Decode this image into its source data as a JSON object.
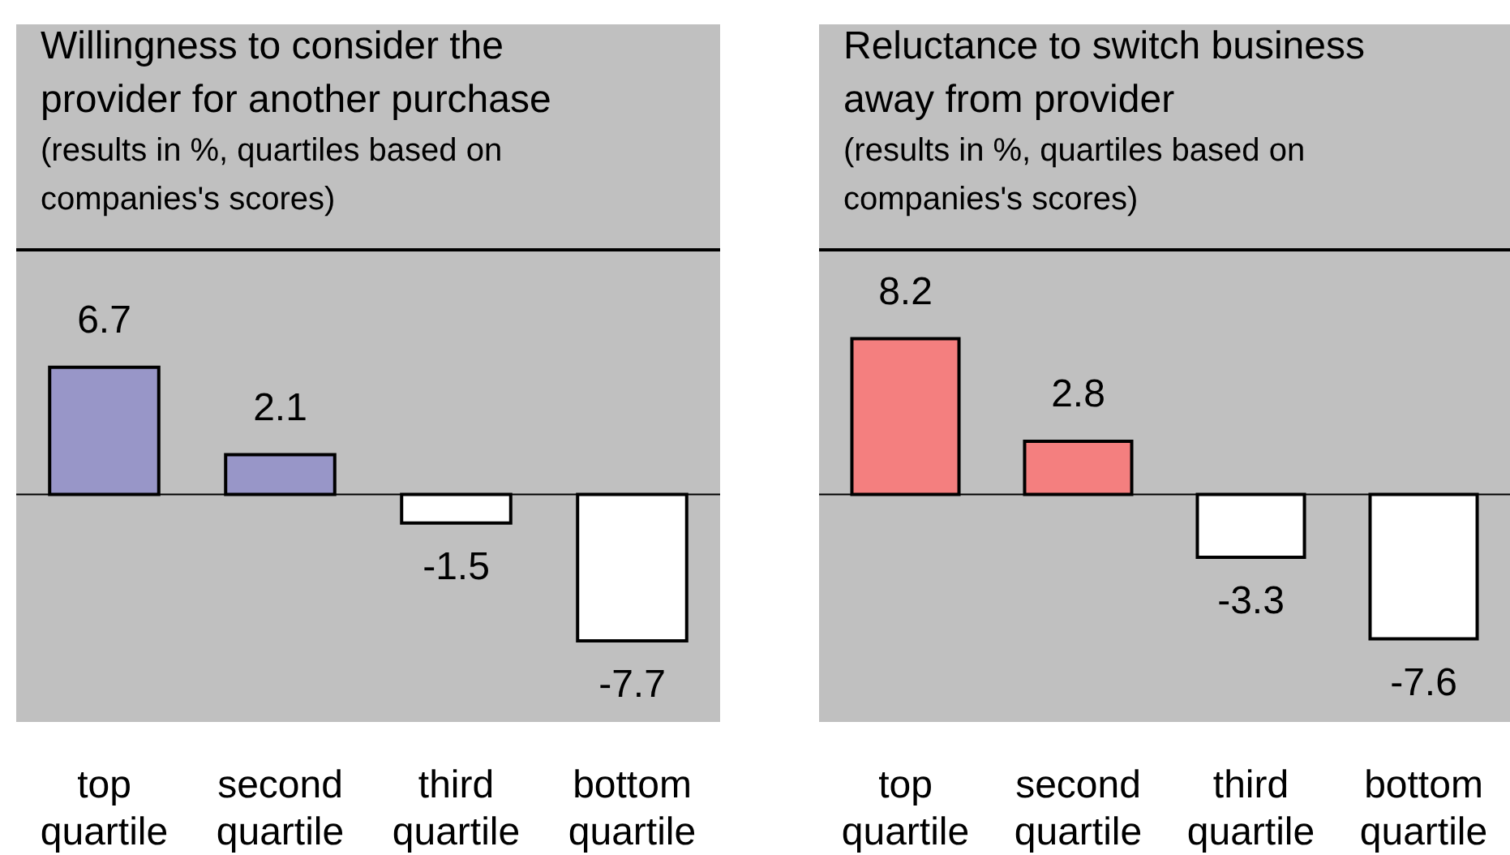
{
  "chart_data": [
    {
      "type": "bar",
      "title": "Willingness to consider the provider for another purchase",
      "subtitle": "(results in %, quartiles based on companies's scores)",
      "categories": [
        "top quartile",
        "second quartile",
        "third quartile",
        "bottom quartile"
      ],
      "values": [
        6.7,
        2.1,
        -1.5,
        -7.7
      ],
      "colors": [
        "#9896c8",
        "#9896c8",
        "#ffffff",
        "#ffffff"
      ],
      "ref_lines": [
        {
          "axis": "y",
          "value": 0
        }
      ],
      "data_labels": true,
      "tick_labels": "x"
    },
    {
      "type": "bar",
      "title": "Reluctance to switch business away from provider",
      "subtitle": "(results in %, quartiles based on companies's scores)",
      "categories": [
        "top quartile",
        "second quartile",
        "third quartile",
        "bottom quartile"
      ],
      "values": [
        8.2,
        2.8,
        -3.3,
        -7.6
      ],
      "colors": [
        "#f47f7f",
        "#f47f7f",
        "#ffffff",
        "#ffffff"
      ],
      "ref_lines": [
        {
          "axis": "y",
          "value": 0
        }
      ],
      "data_labels": true,
      "tick_labels": "x"
    }
  ]
}
